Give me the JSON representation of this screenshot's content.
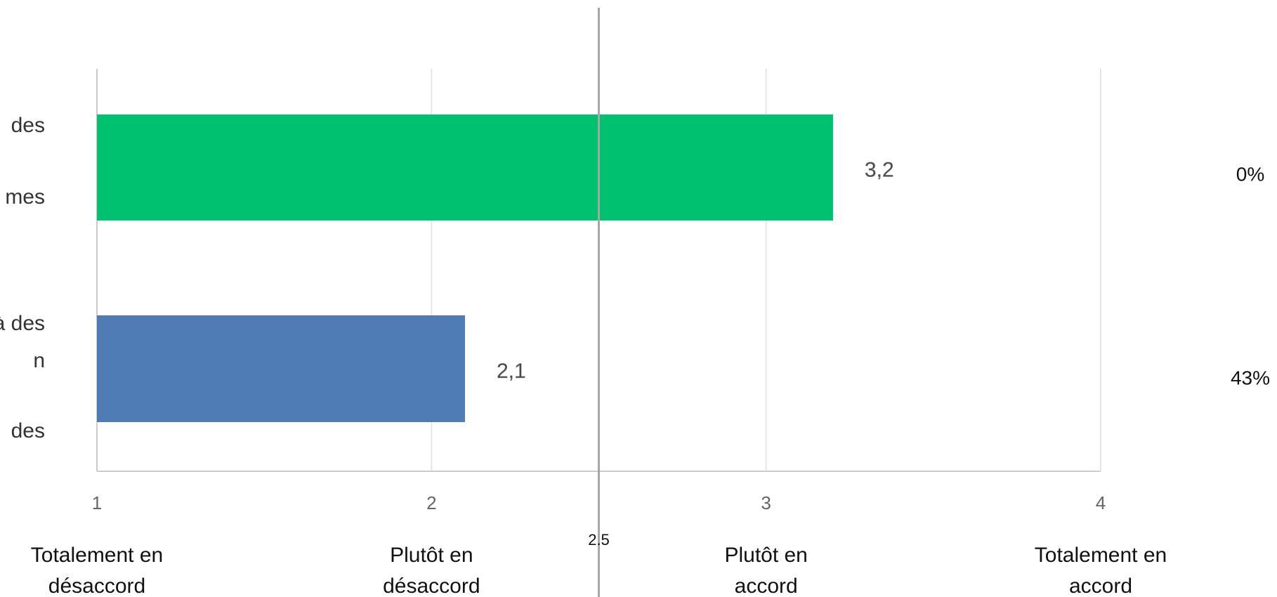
{
  "chart_data": {
    "type": "barh",
    "category_label_lines": [
      [
        "des",
        "mes"
      ],
      [
        "à des",
        "n",
        "des"
      ]
    ],
    "values": [
      3.2,
      2.1
    ],
    "value_labels": [
      "3,2",
      "2,1"
    ],
    "colors": [
      "#00c170",
      "#4f7cb4"
    ],
    "xlim": [
      1,
      4
    ],
    "xticks": [
      1,
      2,
      3,
      4
    ],
    "xtick_descriptions": [
      [
        "Totalement en",
        "désaccord"
      ],
      [
        "Plutôt en",
        "désaccord"
      ],
      [
        "Plutôt en",
        "accord"
      ],
      [
        "Totalement en",
        "accord"
      ]
    ],
    "grid": true,
    "reference_line": {
      "value": 2.5,
      "label": "2.5"
    },
    "side_values": [
      0,
      43
    ],
    "side_value_labels": [
      "0%",
      "43%"
    ]
  }
}
